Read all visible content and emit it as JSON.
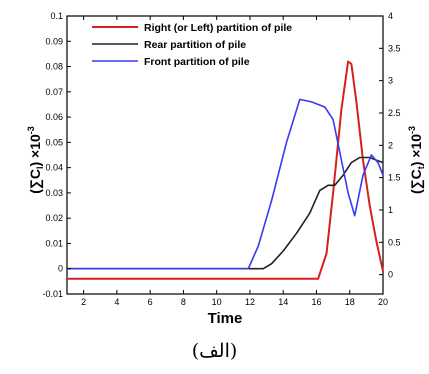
{
  "caption": "(الف)",
  "chart_data": {
    "type": "line",
    "xlabel": "Time",
    "xlim": [
      1,
      20
    ],
    "xticks": [
      2,
      4,
      6,
      8,
      10,
      12,
      14,
      16,
      18,
      20
    ],
    "ylabel_left": {
      "base": "(∑C",
      "sub": "l",
      "mid": ") ×10",
      "sup": "-3"
    },
    "ylabel_right": {
      "base": "(∑C",
      "sub": "t",
      "mid": ") ×10",
      "sup": "-3"
    },
    "ylim_left": [
      -0.01,
      0.1
    ],
    "yticks_left": [
      "-0.01",
      "0",
      "0.01",
      "0.02",
      "0.03",
      "0.04",
      "0.05",
      "0.06",
      "0.07",
      "0.08",
      "0.09",
      "0.1"
    ],
    "ylim_right": [
      -0.3,
      4
    ],
    "yticks_right": [
      "0",
      "0.5",
      "1",
      "1.5",
      "2",
      "2.5",
      "3",
      "3.5",
      "4"
    ],
    "grid": false,
    "legend_position": "top-right",
    "series": [
      {
        "name": "Right (or Left) partition of pile",
        "color": "#d62020",
        "axis": "left",
        "x": [
          1,
          16.1,
          16.6,
          17.0,
          17.5,
          17.9,
          18.1,
          18.4,
          18.8,
          19.2,
          19.6,
          20
        ],
        "y": [
          -0.004,
          -0.004,
          0.006,
          0.03,
          0.063,
          0.082,
          0.081,
          0.066,
          0.043,
          0.025,
          0.011,
          -0.001
        ]
      },
      {
        "name": "Rear partition of pile",
        "color": "#222222",
        "axis": "left",
        "x": [
          1,
          12.8,
          13.3,
          14.0,
          14.8,
          15.6,
          16.2,
          16.7,
          17.1,
          17.6,
          18.1,
          18.6,
          19.2,
          19.6,
          20
        ],
        "y": [
          0,
          0,
          0.002,
          0.007,
          0.014,
          0.022,
          0.031,
          0.033,
          0.033,
          0.037,
          0.042,
          0.044,
          0.044,
          0.043,
          0.042
        ]
      },
      {
        "name": "Front partition of pile",
        "color": "#3a3af0",
        "axis": "left",
        "x": [
          1,
          11.9,
          12.5,
          13.3,
          14.2,
          15.0,
          15.7,
          16.5,
          17.0,
          17.5,
          17.9,
          18.3,
          18.8,
          19.3,
          19.7,
          20
        ],
        "y": [
          0,
          0,
          0.009,
          0.027,
          0.05,
          0.067,
          0.066,
          0.064,
          0.059,
          0.043,
          0.03,
          0.021,
          0.037,
          0.045,
          0.042,
          0.037
        ]
      }
    ]
  }
}
